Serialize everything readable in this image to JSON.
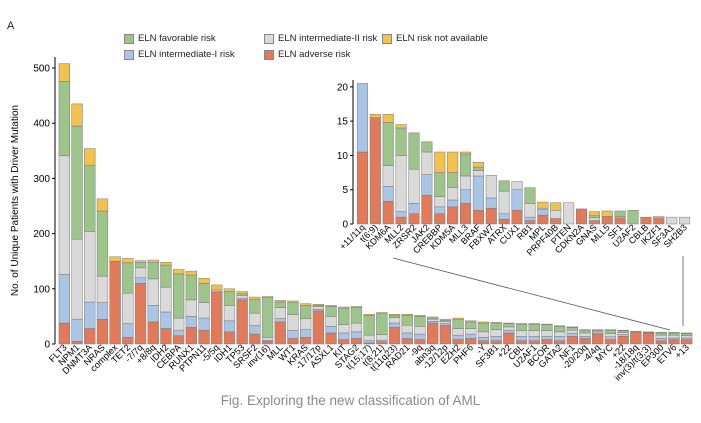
{
  "panel_label": "A",
  "caption": "Fig. Exploring the new classification of AML",
  "legend": [
    {
      "label": "ELN favorable risk",
      "color": "#9dc48a"
    },
    {
      "label": "ELN intermediate-II risk",
      "color": "#d9d9d9"
    },
    {
      "label": "ELN risk not available",
      "color": "#f2c14e"
    },
    {
      "label": "ELN intermediate-I risk",
      "color": "#aac4e6"
    },
    {
      "label": "ELN adverse risk",
      "color": "#e07a5a"
    }
  ],
  "chart_data": [
    {
      "type": "bar",
      "stacked": true,
      "ylabel": "No. of Unique Patients with Driver Mutation",
      "ylim": [
        0,
        520
      ],
      "yticks": [
        0,
        100,
        200,
        300,
        400,
        500
      ],
      "series_order": [
        "adverse",
        "int1",
        "int2",
        "fav",
        "na"
      ],
      "series_colors": {
        "adverse": "#e07a5a",
        "int1": "#aac4e6",
        "int2": "#d9d9d9",
        "fav": "#9dc48a",
        "na": "#f2c14e"
      },
      "categories": [
        "FLT3",
        "NPM1",
        "DNMT3A",
        "NRAS",
        "complex",
        "TET2",
        "-7/7q",
        "+8/8q",
        "IDH2",
        "CEBPA",
        "RUNX1",
        "PTPN11",
        "-5/5q",
        "IDH1",
        "TP53",
        "SRSF2",
        "inv(16)",
        "MLL",
        "WT1",
        "KRAS",
        "-17/17p",
        "ASXL1",
        "KIT",
        "STAG2",
        "t(15;17)",
        "t(8;21)",
        "t(11q23)",
        "RAD21",
        "-9q",
        "abn3q",
        "-12/12p",
        "EZH2",
        "PHF6",
        "-Y",
        "SF3B1",
        "+22",
        "CBL",
        "U2AF1",
        "BCOR",
        "GATA2",
        "NF1",
        "-20/20q",
        "-4/4q",
        "MYC",
        "+22 ",
        "-18/18q",
        "inv(3)/t(3;3)",
        "EP300",
        "ETV6",
        "+13"
      ],
      "values": [
        [
          38,
          88,
          215,
          135,
          32
        ],
        [
          5,
          40,
          145,
          205,
          40
        ],
        [
          28,
          48,
          128,
          120,
          30
        ],
        [
          45,
          30,
          48,
          118,
          22
        ],
        [
          150,
          0,
          0,
          0,
          8
        ],
        [
          12,
          25,
          55,
          55,
          8
        ],
        [
          110,
          10,
          18,
          10,
          3
        ],
        [
          40,
          30,
          48,
          30,
          4
        ],
        [
          28,
          30,
          45,
          40,
          5
        ],
        [
          15,
          10,
          22,
          80,
          8
        ],
        [
          30,
          20,
          30,
          45,
          7
        ],
        [
          25,
          22,
          28,
          35,
          9
        ],
        [
          95,
          0,
          3,
          0,
          9
        ],
        [
          22,
          20,
          28,
          25,
          5
        ],
        [
          80,
          3,
          5,
          3,
          4
        ],
        [
          18,
          16,
          22,
          25,
          4
        ],
        [
          5,
          2,
          5,
          72,
          2
        ],
        [
          40,
          6,
          20,
          10,
          3
        ],
        [
          10,
          15,
          28,
          22,
          3
        ],
        [
          12,
          14,
          20,
          24,
          3
        ],
        [
          60,
          3,
          5,
          2,
          2
        ],
        [
          20,
          12,
          18,
          18,
          2
        ],
        [
          8,
          12,
          15,
          30,
          2
        ],
        [
          10,
          12,
          16,
          28,
          2
        ],
        [
          2,
          4,
          10,
          36,
          2
        ],
        [
          4,
          3,
          10,
          38,
          2
        ],
        [
          30,
          8,
          10,
          4,
          2
        ],
        [
          10,
          10,
          14,
          18,
          2
        ],
        [
          8,
          10,
          14,
          18,
          2
        ],
        [
          38,
          3,
          4,
          2,
          2
        ],
        [
          34,
          3,
          4,
          2,
          2
        ],
        [
          8,
          8,
          12,
          17,
          2
        ],
        [
          10,
          8,
          10,
          12,
          2
        ],
        [
          6,
          6,
          10,
          16,
          2
        ],
        [
          6,
          8,
          12,
          12,
          1
        ],
        [
          20,
          5,
          6,
          6,
          1
        ],
        [
          6,
          8,
          10,
          12,
          1
        ],
        [
          6,
          8,
          10,
          12,
          1
        ],
        [
          8,
          6,
          10,
          11,
          1
        ],
        [
          6,
          8,
          8,
          10,
          1
        ],
        [
          14,
          5,
          6,
          5,
          1
        ],
        [
          10,
          4,
          6,
          5,
          1
        ],
        [
          18,
          2,
          3,
          2,
          1
        ],
        [
          8,
          5,
          6,
          6,
          1
        ],
        [
          14,
          3,
          4,
          3,
          1
        ],
        [
          22,
          0,
          0,
          0,
          1
        ],
        [
          20,
          0,
          1,
          0,
          1
        ],
        [
          6,
          4,
          6,
          4,
          1
        ],
        [
          8,
          3,
          5,
          4,
          1
        ],
        [
          8,
          3,
          4,
          4,
          1
        ]
      ]
    },
    {
      "type": "bar",
      "stacked": true,
      "inset": true,
      "ylim": [
        0,
        21
      ],
      "yticks": [
        0,
        5,
        10,
        15,
        20
      ],
      "series_order": [
        "adverse",
        "int1",
        "int2",
        "fav",
        "na"
      ],
      "categories": [
        "+11/11q",
        "t(6;9)",
        "KDM6A",
        "MLL2",
        "ZRSR2",
        "JAK2",
        "CREBBP",
        "KDM5A",
        "MLL3",
        "BRAF",
        "FBXW7",
        "ATRX",
        "CUX1",
        "RB1",
        "MPL",
        "PRPF40B",
        "PTEN",
        "CDKN2A",
        "GNAS",
        "MLL5",
        "SF1",
        "U2AF2",
        "CBLB",
        "IKZF1",
        "SF3A1",
        "SH2B3"
      ],
      "values": [
        [
          10.5,
          10,
          0,
          0,
          0
        ],
        [
          15.5,
          0,
          0,
          0,
          0.5
        ],
        [
          3.3,
          2.2,
          3,
          6.3,
          1.2
        ],
        [
          1,
          0.8,
          8.2,
          4,
          0.5
        ],
        [
          1.5,
          1.5,
          5,
          5.3,
          0
        ],
        [
          4.2,
          3,
          3.3,
          1.5,
          0
        ],
        [
          1.5,
          1,
          1.5,
          3.5,
          3
        ],
        [
          2.5,
          1,
          1.8,
          2.2,
          3
        ],
        [
          3,
          2,
          2,
          3.2,
          0.3
        ],
        [
          2,
          5,
          0.8,
          0.5,
          0.7
        ],
        [
          2.3,
          1.5,
          3.3,
          0,
          0
        ],
        [
          0.7,
          0.8,
          3.3,
          1.5,
          0
        ],
        [
          2,
          3,
          1.2,
          0,
          0
        ],
        [
          0.5,
          0.5,
          2,
          2.3,
          0
        ],
        [
          1.3,
          0.8,
          0.2,
          0,
          0.9
        ],
        [
          0.8,
          0,
          1.2,
          0,
          1.1
        ],
        [
          0,
          0,
          3.1,
          0,
          0
        ],
        [
          2.2,
          0,
          0,
          0,
          0
        ],
        [
          0.5,
          0,
          0.4,
          0.3,
          0.6
        ],
        [
          1.1,
          0,
          0,
          0,
          0.8
        ],
        [
          0.9,
          0,
          0.2,
          0.8,
          0
        ],
        [
          0,
          0,
          0,
          2,
          0
        ],
        [
          1,
          0,
          0,
          0,
          0
        ],
        [
          0.9,
          0,
          0.2,
          0,
          0
        ],
        [
          0,
          0,
          1,
          0,
          0
        ],
        [
          0,
          0,
          1,
          0,
          0
        ]
      ]
    }
  ]
}
